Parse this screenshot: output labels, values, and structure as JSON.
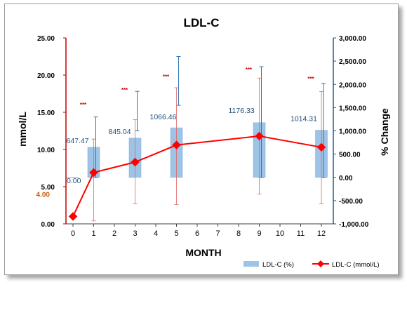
{
  "chart_data": {
    "type": "bar+line",
    "title": "LDL-C",
    "xlabel": "MONTH",
    "ylabel_left": "mmol/L",
    "ylabel_right": "% Change",
    "categories": [
      "0",
      "1",
      "2",
      "3",
      "4",
      "5",
      "6",
      "7",
      "8",
      "9",
      "10",
      "11",
      "12"
    ],
    "left_axis": {
      "min": 0,
      "max": 25,
      "ticks": [
        "0.00",
        "5.00",
        "10.00",
        "15.00",
        "20.00",
        "25.00"
      ],
      "reference_label": "4.00",
      "reference_value": 4.0
    },
    "right_axis": {
      "min": -1000,
      "max": 3000,
      "ticks": [
        "-1,000.00",
        "-500.00",
        "0.00",
        "500.00",
        "1,000.00",
        "1,500.00",
        "2,000.00",
        "2,500.00",
        "3,000.00"
      ]
    },
    "series": [
      {
        "name": "LDL-C (%)",
        "kind": "bar",
        "axis": "right",
        "points": [
          {
            "month": 0,
            "value": 0.0,
            "label": "0.00",
            "err_hi": 0,
            "err_lo": 0
          },
          {
            "month": 1,
            "value": 647.47,
            "label": "647.47",
            "err_hi": 1300,
            "err_lo": 0
          },
          {
            "month": 3,
            "value": 845.04,
            "label": "845.04",
            "err_hi": 1850,
            "err_lo": 1000
          },
          {
            "month": 5,
            "value": 1066.46,
            "label": "1066.46",
            "err_hi": 2600,
            "err_lo": 1550
          },
          {
            "month": 9,
            "value": 1176.33,
            "label": "1176.33",
            "err_hi": 2380,
            "err_lo": 0
          },
          {
            "month": 12,
            "value": 1014.31,
            "label": "1014.31",
            "err_hi": 2020,
            "err_lo": 0
          }
        ]
      },
      {
        "name": "LDL-C (mmol/L)",
        "kind": "line",
        "axis": "left",
        "points": [
          {
            "month": 0,
            "value": 1.0,
            "err_hi": 0,
            "err_lo": 0
          },
          {
            "month": 1,
            "value": 6.9,
            "err_hi": 11.4,
            "err_lo": 0.4
          },
          {
            "month": 3,
            "value": 8.3,
            "err_hi": 14.0,
            "err_lo": 2.7
          },
          {
            "month": 5,
            "value": 10.6,
            "err_hi": 18.3,
            "err_lo": 2.6
          },
          {
            "month": 9,
            "value": 11.8,
            "err_hi": 19.6,
            "err_lo": 4.0
          },
          {
            "month": 12,
            "value": 10.3,
            "err_hi": 17.8,
            "err_lo": 2.7
          }
        ]
      }
    ],
    "significance": {
      "label": "***",
      "months": [
        1,
        3,
        5,
        9,
        12
      ]
    },
    "legend": {
      "position": "bottom-right",
      "entries": [
        "LDL-C (%)",
        "LDL-C (mmol/L)"
      ]
    },
    "colors": {
      "bar": "#9dc3e6",
      "line": "#ff0000",
      "marker": "#ff0000",
      "left_axis": "#c00000",
      "right_axis": "#1f5c8b",
      "reference": "#c55a11",
      "bar_label": "#1f4e79",
      "stars": "#c00000"
    },
    "grid": false
  }
}
